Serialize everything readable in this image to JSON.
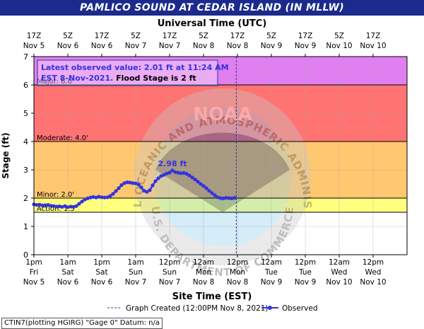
{
  "header": {
    "title": "PAMLICO SOUND AT CEDAR ISLAND (IN MLLW)"
  },
  "chart_data": {
    "type": "line",
    "title": "PAMLICO SOUND AT CEDAR ISLAND (IN MLLW)",
    "top_axis_label": "Universal Time (UTC)",
    "xlabel": "Site Time (EST)",
    "ylabel": "Stage (ft)",
    "ylim": [
      0,
      7
    ],
    "yticks": [
      0,
      1,
      2,
      3,
      4,
      5,
      6,
      7
    ],
    "xlim_hours_from_start": [
      0,
      132
    ],
    "x_start_label": "1pm Fri Nov 5",
    "bottom_ticks": [
      {
        "h": 0,
        "line1": "1pm",
        "line2": "Fri",
        "line3": "Nov 5"
      },
      {
        "h": 12,
        "line1": "1am",
        "line2": "Sat",
        "line3": "Nov 6"
      },
      {
        "h": 24,
        "line1": "1pm",
        "line2": "Sat",
        "line3": "Nov 6"
      },
      {
        "h": 36,
        "line1": "1am",
        "line2": "Sun",
        "line3": "Nov 7"
      },
      {
        "h": 48,
        "line1": "12pm",
        "line2": "Sun",
        "line3": "Nov 7"
      },
      {
        "h": 60,
        "line1": "12am",
        "line2": "Mon",
        "line3": "Nov 8"
      },
      {
        "h": 72,
        "line1": "12pm",
        "line2": "Mon",
        "line3": "Nov 8"
      },
      {
        "h": 84,
        "line1": "12am",
        "line2": "Tue",
        "line3": "Nov 9"
      },
      {
        "h": 96,
        "line1": "12pm",
        "line2": "Tue",
        "line3": "Nov 9"
      },
      {
        "h": 108,
        "line1": "12am",
        "line2": "Wed",
        "line3": "Nov 10"
      },
      {
        "h": 120,
        "line1": "12pm",
        "line2": "Wed",
        "line3": "Nov 10"
      }
    ],
    "top_ticks": [
      {
        "h": 0,
        "line1": "17Z",
        "line2": "Nov 5"
      },
      {
        "h": 12,
        "line1": "5Z",
        "line2": "Nov 6"
      },
      {
        "h": 24,
        "line1": "17Z",
        "line2": "Nov 6"
      },
      {
        "h": 36,
        "line1": "5Z",
        "line2": "Nov 7"
      },
      {
        "h": 48,
        "line1": "17Z",
        "line2": "Nov 7"
      },
      {
        "h": 60,
        "line1": "5Z",
        "line2": "Nov 8"
      },
      {
        "h": 72,
        "line1": "17Z",
        "line2": "Nov 8"
      },
      {
        "h": 84,
        "line1": "5Z",
        "line2": "Nov 9"
      },
      {
        "h": 96,
        "line1": "17Z",
        "line2": "Nov 9"
      },
      {
        "h": 108,
        "line1": "5Z",
        "line2": "Nov 10"
      },
      {
        "h": 120,
        "line1": "17Z",
        "line2": "Nov 10"
      }
    ],
    "flood_bands": [
      {
        "name": "Major",
        "from": 6,
        "to": 7,
        "color": "#e07ff0"
      },
      {
        "name": "Moderate",
        "from": 4,
        "to": 6,
        "color": "#ff7373"
      },
      {
        "name": "Minor",
        "from": 2,
        "to": 4,
        "color": "#ffc76f"
      },
      {
        "name": "Action",
        "from": 1.5,
        "to": 2,
        "color": "#ffff80"
      }
    ],
    "stage_lines": [
      {
        "label": "Major: 6.0'",
        "value": 6
      },
      {
        "label": "Moderate: 4.0'",
        "value": 4
      },
      {
        "label": "Minor: 2.0'",
        "value": 2
      },
      {
        "label": "Action: 1.5'",
        "value": 1.5
      }
    ],
    "info_box": {
      "line1_blue": "Latest observed value: 2.01 ft at 11:24 AM",
      "line2_blue": "EST 8-Nov-2021.",
      "line2_black": " Flood Stage is 2 ft"
    },
    "peak_label": "2.98 ft",
    "peak": {
      "h": 49,
      "y": 2.98
    },
    "graph_created_h": 71.6,
    "series": [
      {
        "name": "Observed",
        "color": "#3333dd",
        "points": [
          [
            0,
            1.78
          ],
          [
            1,
            1.76
          ],
          [
            2,
            1.77
          ],
          [
            3,
            1.74
          ],
          [
            4,
            1.75
          ],
          [
            5,
            1.76
          ],
          [
            6,
            1.73
          ],
          [
            7,
            1.72
          ],
          [
            8,
            1.7
          ],
          [
            9,
            1.71
          ],
          [
            10,
            1.69
          ],
          [
            11,
            1.72
          ],
          [
            12,
            1.68
          ],
          [
            13,
            1.7
          ],
          [
            14,
            1.69
          ],
          [
            15,
            1.72
          ],
          [
            16,
            1.8
          ],
          [
            17,
            1.88
          ],
          [
            18,
            1.95
          ],
          [
            19,
            1.99
          ],
          [
            20,
            2.02
          ],
          [
            21,
            2.04
          ],
          [
            22,
            2.02
          ],
          [
            23,
            2.05
          ],
          [
            24,
            2.03
          ],
          [
            25,
            2.02
          ],
          [
            26,
            2.03
          ],
          [
            27,
            2.08
          ],
          [
            28,
            2.15
          ],
          [
            29,
            2.25
          ],
          [
            30,
            2.35
          ],
          [
            31,
            2.46
          ],
          [
            32,
            2.53
          ],
          [
            33,
            2.56
          ],
          [
            34,
            2.55
          ],
          [
            35,
            2.53
          ],
          [
            36,
            2.52
          ],
          [
            37,
            2.48
          ],
          [
            38,
            2.38
          ],
          [
            39,
            2.26
          ],
          [
            40,
            2.22
          ],
          [
            41,
            2.28
          ],
          [
            42,
            2.45
          ],
          [
            43,
            2.6
          ],
          [
            44,
            2.7
          ],
          [
            45,
            2.78
          ],
          [
            46,
            2.82
          ],
          [
            47,
            2.87
          ],
          [
            48,
            2.9
          ],
          [
            49,
            2.98
          ],
          [
            50,
            2.92
          ],
          [
            51,
            2.9
          ],
          [
            52,
            2.88
          ],
          [
            53,
            2.89
          ],
          [
            54,
            2.86
          ],
          [
            55,
            2.8
          ],
          [
            56,
            2.73
          ],
          [
            57,
            2.66
          ],
          [
            58,
            2.58
          ],
          [
            59,
            2.5
          ],
          [
            60,
            2.43
          ],
          [
            61,
            2.35
          ],
          [
            62,
            2.26
          ],
          [
            63,
            2.18
          ],
          [
            64,
            2.1
          ],
          [
            65,
            2.03
          ],
          [
            66,
            2.0
          ],
          [
            67,
            1.99
          ],
          [
            68,
            2.01
          ],
          [
            69,
            2.0
          ],
          [
            70,
            1.99
          ],
          [
            71,
            2.01
          ]
        ]
      }
    ],
    "legend": {
      "graph_created": "Graph Created (12:00PM Nov 8, 2021)",
      "observed": "Observed"
    },
    "watermark": {
      "ring_top": "NATIONAL OCEANIC AND ATMOSPHERIC ADMINISTRATION",
      "ring_bottom": "U.S. DEPARTMENT OF COMMERCE",
      "center": "NOAA"
    }
  },
  "footer": {
    "text": "CTIN7(plotting HGIRG) \"Gage 0\" Datum: n/a"
  }
}
